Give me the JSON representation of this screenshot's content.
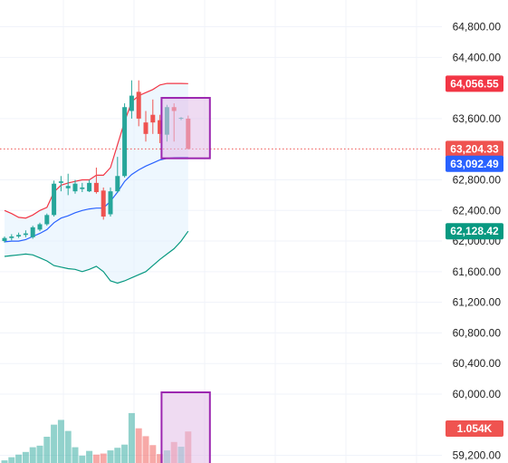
{
  "price_axis": {
    "ticks": [
      "64,800.00",
      "64,400.00",
      "63,600.00",
      "62,800.00",
      "62,400.00",
      "62,000.00",
      "61,600.00",
      "61,200.00",
      "60,800.00",
      "60,400.00",
      "60,000.00",
      "59,200.00"
    ]
  },
  "badges": {
    "upper_band": "64,056.55",
    "last_price": "63,204.33",
    "middle_band": "63,092.49",
    "lower_band": "62,128.42",
    "volume": "1.054K"
  },
  "colors": {
    "up": "#26a69a",
    "down": "#ef5350",
    "upper_band": "#f23645",
    "middle_band": "#2962ff",
    "lower_band": "#089981",
    "band_fill": "#e3f2fd",
    "highlight_border": "#9c27b0",
    "highlight_fill": "#e1bee7",
    "grid": "#f0f3fa"
  },
  "chart_data": {
    "type": "candlestick",
    "y_axis_range": [
      59100,
      65150
    ],
    "candles": [
      {
        "o": 62000,
        "h": 62060,
        "l": 61980,
        "c": 62040
      },
      {
        "o": 62040,
        "h": 62090,
        "l": 62010,
        "c": 62060
      },
      {
        "o": 62060,
        "h": 62110,
        "l": 62040,
        "c": 62080
      },
      {
        "o": 62080,
        "h": 62140,
        "l": 62050,
        "c": 62100
      },
      {
        "o": 62050,
        "h": 62200,
        "l": 62030,
        "c": 62180
      },
      {
        "o": 62150,
        "h": 62240,
        "l": 62130,
        "c": 62220
      },
      {
        "o": 62220,
        "h": 62360,
        "l": 62200,
        "c": 62340
      },
      {
        "o": 62340,
        "h": 62790,
        "l": 62320,
        "c": 62750
      },
      {
        "o": 62760,
        "h": 62850,
        "l": 62650,
        "c": 62780
      },
      {
        "o": 62690,
        "h": 62880,
        "l": 62600,
        "c": 62720
      },
      {
        "o": 62650,
        "h": 62800,
        "l": 62620,
        "c": 62750
      },
      {
        "o": 62680,
        "h": 62760,
        "l": 62640,
        "c": 62700
      },
      {
        "o": 62650,
        "h": 62800,
        "l": 62640,
        "c": 62760
      },
      {
        "o": 62760,
        "h": 62960,
        "l": 62620,
        "c": 62640
      },
      {
        "o": 62660,
        "h": 62700,
        "l": 62280,
        "c": 62320
      },
      {
        "o": 62350,
        "h": 62700,
        "l": 62320,
        "c": 62650
      },
      {
        "o": 62650,
        "h": 63100,
        "l": 62630,
        "c": 62850
      },
      {
        "o": 62850,
        "h": 63800,
        "l": 62830,
        "c": 63750
      },
      {
        "o": 63700,
        "h": 64100,
        "l": 63600,
        "c": 63900
      },
      {
        "o": 63950,
        "h": 64100,
        "l": 63500,
        "c": 63600
      },
      {
        "o": 63550,
        "h": 63700,
        "l": 63300,
        "c": 63400
      },
      {
        "o": 63650,
        "h": 63850,
        "l": 63400,
        "c": 63550
      },
      {
        "o": 63580,
        "h": 63650,
        "l": 63280,
        "c": 63400
      },
      {
        "o": 63390,
        "h": 63780,
        "l": 63300,
        "c": 63750
      },
      {
        "o": 63750,
        "h": 63800,
        "l": 63300,
        "c": 63700
      },
      {
        "o": 63600,
        "h": 63620,
        "l": 63580,
        "c": 63610
      },
      {
        "o": 63600,
        "h": 63640,
        "l": 63200,
        "c": 63204
      }
    ],
    "volume": [
      0.05,
      0.11,
      0.16,
      0.21,
      0.3,
      0.33,
      0.5,
      0.73,
      0.82,
      0.61,
      0.3,
      0.14,
      0.23,
      0.16,
      0.18,
      0.24,
      0.29,
      0.35,
      0.95,
      0.66,
      0.51,
      0.34,
      0.17,
      0.24,
      0.4,
      0.31,
      0.6
    ],
    "bollinger": {
      "upper": [
        62400,
        62360,
        62310,
        62300,
        62340,
        62400,
        62440,
        62640,
        62730,
        62760,
        62780,
        62800,
        62800,
        62860,
        62860,
        62960,
        63260,
        63560,
        63820,
        63900,
        63940,
        63980,
        64040,
        64060,
        64060,
        64060,
        64057
      ],
      "middle": [
        61990,
        62000,
        62000,
        62020,
        62060,
        62100,
        62150,
        62240,
        62300,
        62330,
        62370,
        62400,
        62420,
        62430,
        62430,
        62520,
        62640,
        62780,
        62870,
        62930,
        62980,
        63020,
        63060,
        63080,
        63090,
        63092,
        63092
      ],
      "lower": [
        61800,
        61810,
        61820,
        61830,
        61820,
        61780,
        61740,
        61680,
        61660,
        61640,
        61630,
        61600,
        61630,
        61670,
        61600,
        61480,
        61450,
        61480,
        61520,
        61560,
        61600,
        61680,
        61760,
        61830,
        61900,
        62000,
        62128
      ]
    },
    "last_price": 63204.33,
    "highlight_candle_range": [
      23,
      26
    ]
  }
}
